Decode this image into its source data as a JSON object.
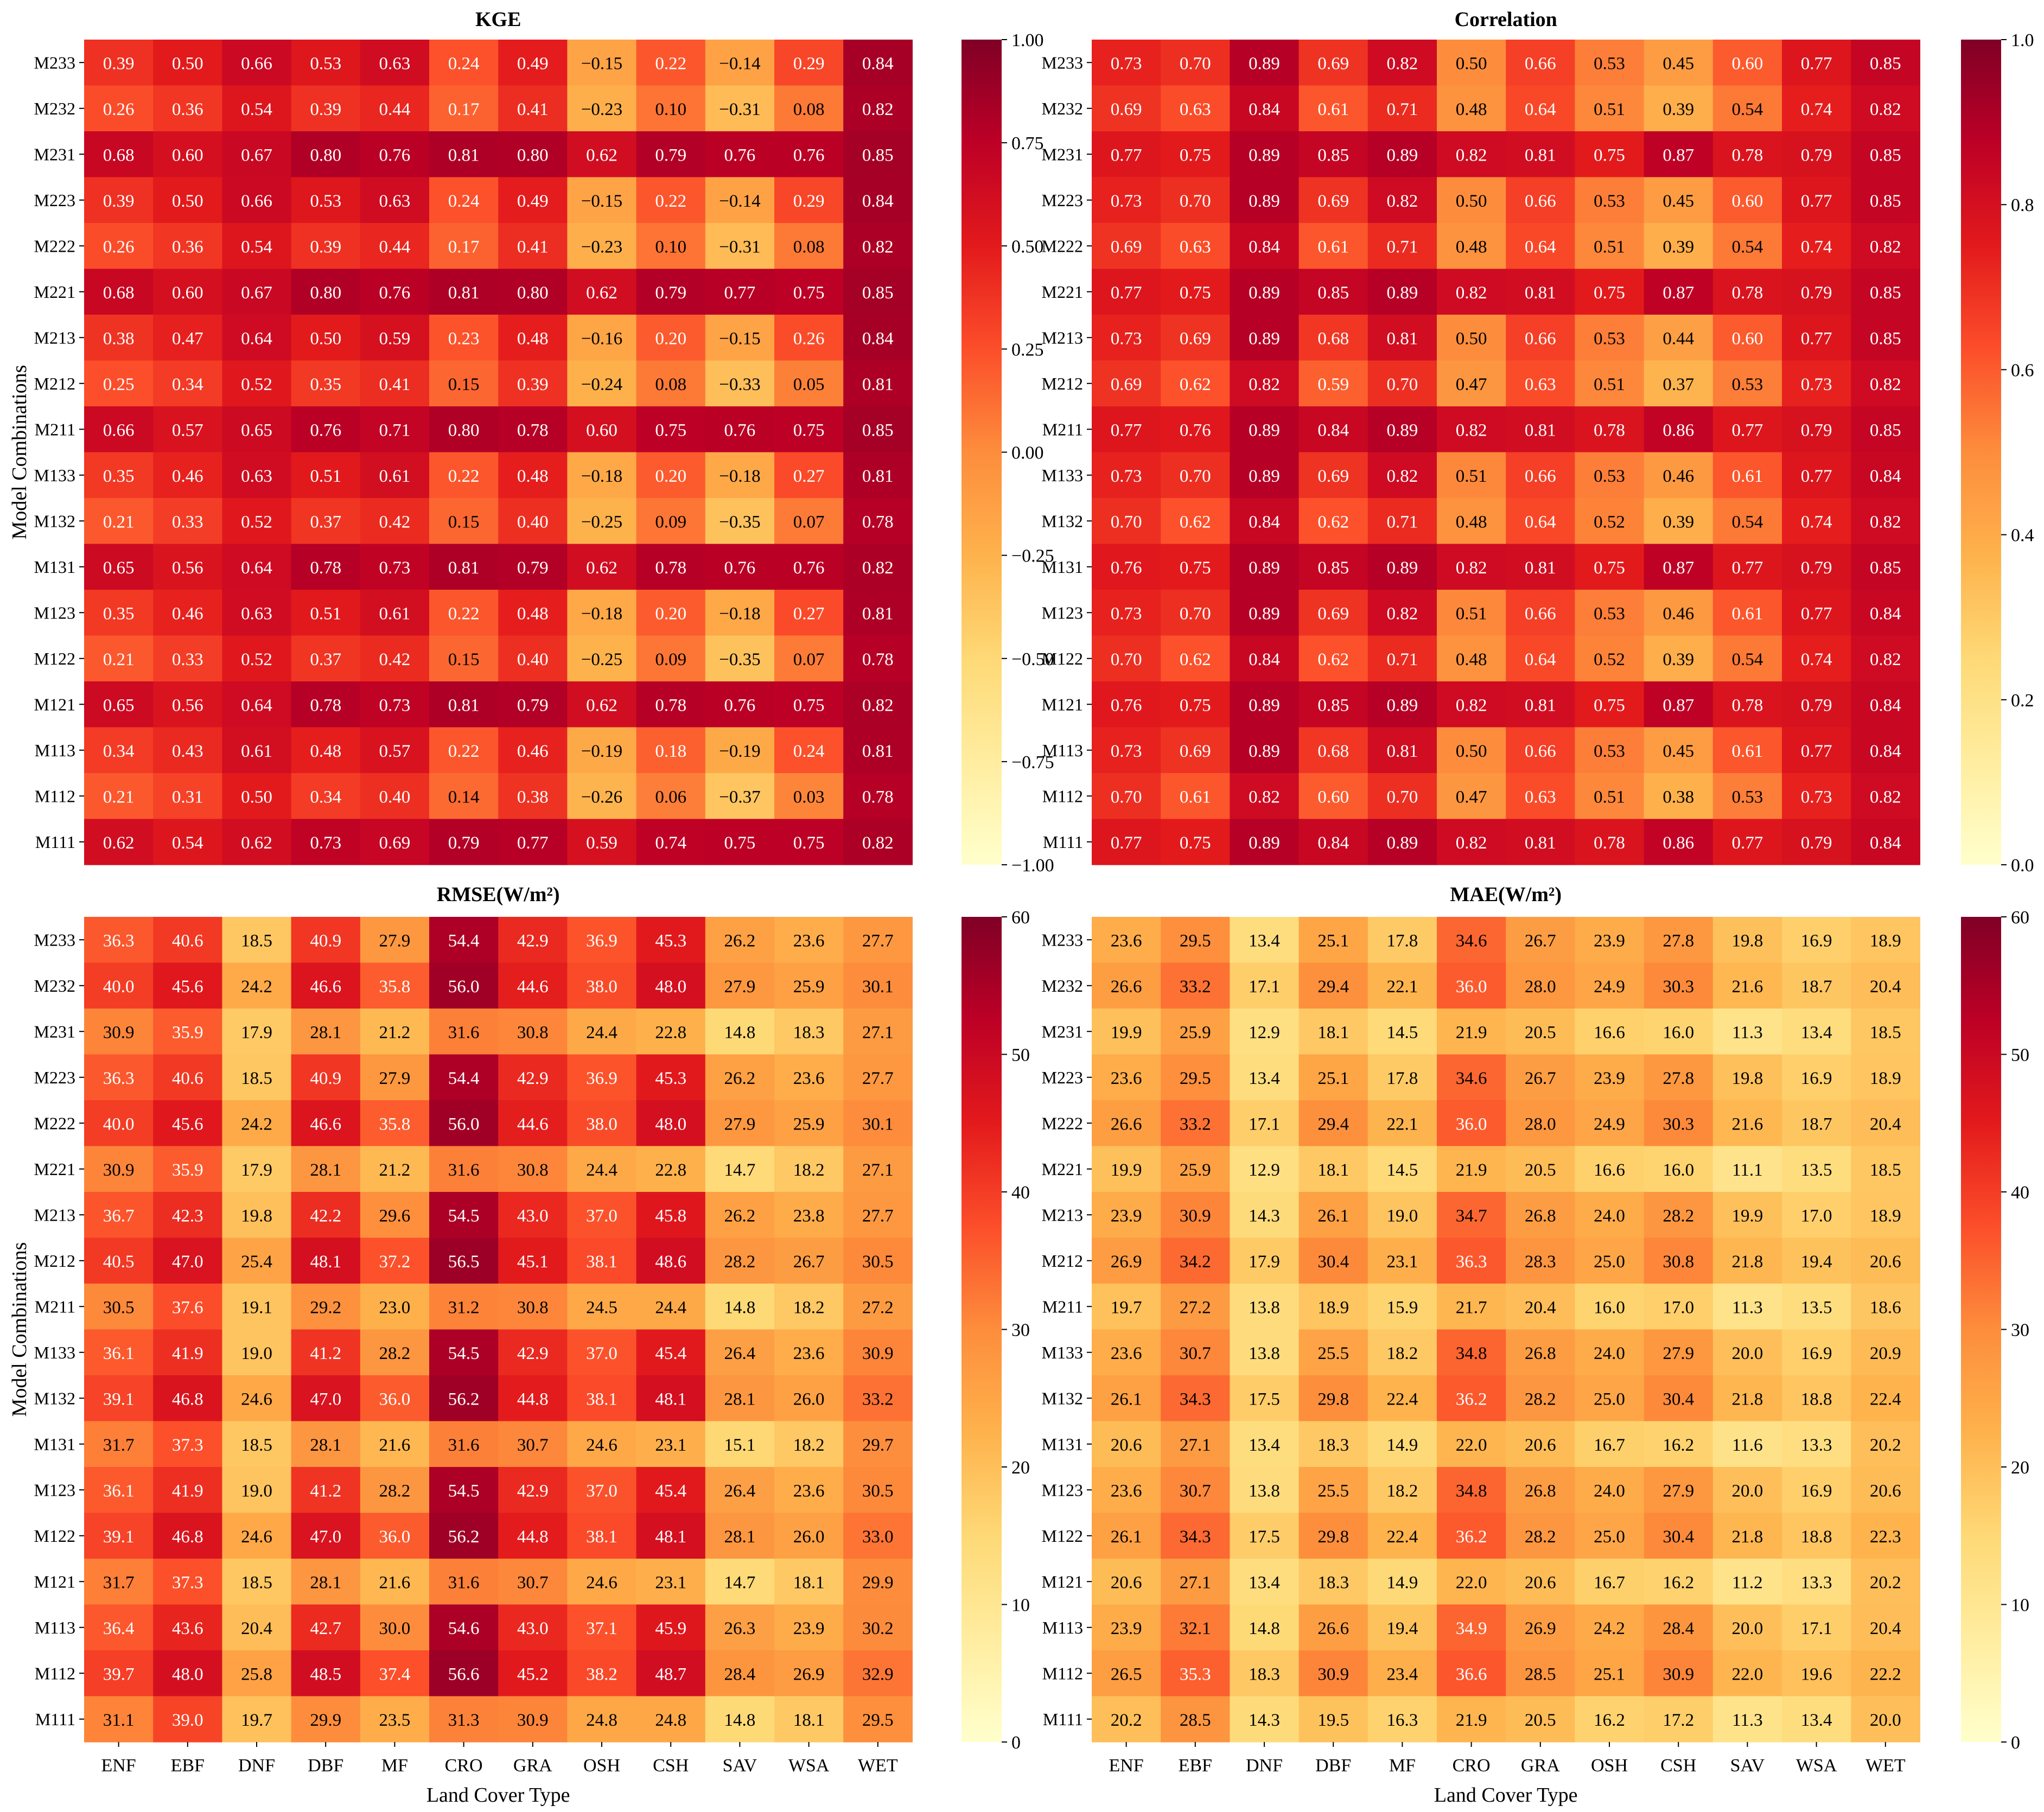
{
  "figure": {
    "xlabel": "Land Cover Type",
    "ylabel": "Model Combinations"
  },
  "colormap": {
    "name": "YlOrRd",
    "stops": [
      "#ffffcc",
      "#ffeda0",
      "#fed976",
      "#feb24c",
      "#fd8d3c",
      "#fc4e2a",
      "#e31a1c",
      "#bd0026",
      "#800026"
    ]
  },
  "chart_data": [
    {
      "type": "heatmap",
      "title": "KGE",
      "xlabel": "Land Cover Type",
      "ylabel": "Model Combinations",
      "x": [
        "ENF",
        "EBF",
        "DNF",
        "DBF",
        "MF",
        "CRO",
        "GRA",
        "OSH",
        "CSH",
        "SAV",
        "WSA",
        "WET"
      ],
      "y": [
        "M233",
        "M232",
        "M231",
        "M223",
        "M222",
        "M221",
        "M213",
        "M212",
        "M211",
        "M133",
        "M132",
        "M131",
        "M123",
        "M122",
        "M121",
        "M113",
        "M112",
        "M111"
      ],
      "values": [
        [
          0.39,
          0.5,
          0.66,
          0.53,
          0.63,
          0.24,
          0.49,
          -0.15,
          0.22,
          -0.14,
          0.29,
          0.84
        ],
        [
          0.26,
          0.36,
          0.54,
          0.39,
          0.44,
          0.17,
          0.41,
          -0.23,
          0.1,
          -0.31,
          0.08,
          0.82
        ],
        [
          0.68,
          0.6,
          0.67,
          0.8,
          0.76,
          0.81,
          0.8,
          0.62,
          0.79,
          0.76,
          0.76,
          0.85
        ],
        [
          0.39,
          0.5,
          0.66,
          0.53,
          0.63,
          0.24,
          0.49,
          -0.15,
          0.22,
          -0.14,
          0.29,
          0.84
        ],
        [
          0.26,
          0.36,
          0.54,
          0.39,
          0.44,
          0.17,
          0.41,
          -0.23,
          0.1,
          -0.31,
          0.08,
          0.82
        ],
        [
          0.68,
          0.6,
          0.67,
          0.8,
          0.76,
          0.81,
          0.8,
          0.62,
          0.79,
          0.77,
          0.75,
          0.85
        ],
        [
          0.38,
          0.47,
          0.64,
          0.5,
          0.59,
          0.23,
          0.48,
          -0.16,
          0.2,
          -0.15,
          0.26,
          0.84
        ],
        [
          0.25,
          0.34,
          0.52,
          0.35,
          0.41,
          0.15,
          0.39,
          -0.24,
          0.08,
          -0.33,
          0.05,
          0.81
        ],
        [
          0.66,
          0.57,
          0.65,
          0.76,
          0.71,
          0.8,
          0.78,
          0.6,
          0.75,
          0.76,
          0.75,
          0.85
        ],
        [
          0.35,
          0.46,
          0.63,
          0.51,
          0.61,
          0.22,
          0.48,
          -0.18,
          0.2,
          -0.18,
          0.27,
          0.81
        ],
        [
          0.21,
          0.33,
          0.52,
          0.37,
          0.42,
          0.15,
          0.4,
          -0.25,
          0.09,
          -0.35,
          0.07,
          0.78
        ],
        [
          0.65,
          0.56,
          0.64,
          0.78,
          0.73,
          0.81,
          0.79,
          0.62,
          0.78,
          0.76,
          0.76,
          0.82
        ],
        [
          0.35,
          0.46,
          0.63,
          0.51,
          0.61,
          0.22,
          0.48,
          -0.18,
          0.2,
          -0.18,
          0.27,
          0.81
        ],
        [
          0.21,
          0.33,
          0.52,
          0.37,
          0.42,
          0.15,
          0.4,
          -0.25,
          0.09,
          -0.35,
          0.07,
          0.78
        ],
        [
          0.65,
          0.56,
          0.64,
          0.78,
          0.73,
          0.81,
          0.79,
          0.62,
          0.78,
          0.76,
          0.75,
          0.82
        ],
        [
          0.34,
          0.43,
          0.61,
          0.48,
          0.57,
          0.22,
          0.46,
          -0.19,
          0.18,
          -0.19,
          0.24,
          0.81
        ],
        [
          0.21,
          0.31,
          0.5,
          0.34,
          0.4,
          0.14,
          0.38,
          -0.26,
          0.06,
          -0.37,
          0.03,
          0.78
        ],
        [
          0.62,
          0.54,
          0.62,
          0.73,
          0.69,
          0.79,
          0.77,
          0.59,
          0.74,
          0.75,
          0.75,
          0.82
        ]
      ],
      "value_format": 2,
      "vmin": -1.0,
      "vmax": 1.0,
      "colorbar_ticks": [
        -1.0,
        -0.75,
        -0.5,
        -0.25,
        0.0,
        0.25,
        0.5,
        0.75,
        1.0
      ],
      "colorbar_tick_labels": [
        "−1.00",
        "−0.75",
        "−0.50",
        "−0.25",
        "0.00",
        "0.25",
        "0.50",
        "0.75",
        "1.00"
      ]
    },
    {
      "type": "heatmap",
      "title": "Correlation",
      "xlabel": "Land Cover Type",
      "ylabel": "Model Combinations",
      "x": [
        "ENF",
        "EBF",
        "DNF",
        "DBF",
        "MF",
        "CRO",
        "GRA",
        "OSH",
        "CSH",
        "SAV",
        "WSA",
        "WET"
      ],
      "y": [
        "M233",
        "M232",
        "M231",
        "M223",
        "M222",
        "M221",
        "M213",
        "M212",
        "M211",
        "M133",
        "M132",
        "M131",
        "M123",
        "M122",
        "M121",
        "M113",
        "M112",
        "M111"
      ],
      "values": [
        [
          0.73,
          0.7,
          0.89,
          0.69,
          0.82,
          0.5,
          0.66,
          0.53,
          0.45,
          0.6,
          0.77,
          0.85
        ],
        [
          0.69,
          0.63,
          0.84,
          0.61,
          0.71,
          0.48,
          0.64,
          0.51,
          0.39,
          0.54,
          0.74,
          0.82
        ],
        [
          0.77,
          0.75,
          0.89,
          0.85,
          0.89,
          0.82,
          0.81,
          0.75,
          0.87,
          0.78,
          0.79,
          0.85
        ],
        [
          0.73,
          0.7,
          0.89,
          0.69,
          0.82,
          0.5,
          0.66,
          0.53,
          0.45,
          0.6,
          0.77,
          0.85
        ],
        [
          0.69,
          0.63,
          0.84,
          0.61,
          0.71,
          0.48,
          0.64,
          0.51,
          0.39,
          0.54,
          0.74,
          0.82
        ],
        [
          0.77,
          0.75,
          0.89,
          0.85,
          0.89,
          0.82,
          0.81,
          0.75,
          0.87,
          0.78,
          0.79,
          0.85
        ],
        [
          0.73,
          0.69,
          0.89,
          0.68,
          0.81,
          0.5,
          0.66,
          0.53,
          0.44,
          0.6,
          0.77,
          0.85
        ],
        [
          0.69,
          0.62,
          0.82,
          0.59,
          0.7,
          0.47,
          0.63,
          0.51,
          0.37,
          0.53,
          0.73,
          0.82
        ],
        [
          0.77,
          0.76,
          0.89,
          0.84,
          0.89,
          0.82,
          0.81,
          0.78,
          0.86,
          0.77,
          0.79,
          0.85
        ],
        [
          0.73,
          0.7,
          0.89,
          0.69,
          0.82,
          0.51,
          0.66,
          0.53,
          0.46,
          0.61,
          0.77,
          0.84
        ],
        [
          0.7,
          0.62,
          0.84,
          0.62,
          0.71,
          0.48,
          0.64,
          0.52,
          0.39,
          0.54,
          0.74,
          0.82
        ],
        [
          0.76,
          0.75,
          0.89,
          0.85,
          0.89,
          0.82,
          0.81,
          0.75,
          0.87,
          0.77,
          0.79,
          0.85
        ],
        [
          0.73,
          0.7,
          0.89,
          0.69,
          0.82,
          0.51,
          0.66,
          0.53,
          0.46,
          0.61,
          0.77,
          0.84
        ],
        [
          0.7,
          0.62,
          0.84,
          0.62,
          0.71,
          0.48,
          0.64,
          0.52,
          0.39,
          0.54,
          0.74,
          0.82
        ],
        [
          0.76,
          0.75,
          0.89,
          0.85,
          0.89,
          0.82,
          0.81,
          0.75,
          0.87,
          0.78,
          0.79,
          0.84
        ],
        [
          0.73,
          0.69,
          0.89,
          0.68,
          0.81,
          0.5,
          0.66,
          0.53,
          0.45,
          0.61,
          0.77,
          0.84
        ],
        [
          0.7,
          0.61,
          0.82,
          0.6,
          0.7,
          0.47,
          0.63,
          0.51,
          0.38,
          0.53,
          0.73,
          0.82
        ],
        [
          0.77,
          0.75,
          0.89,
          0.84,
          0.89,
          0.82,
          0.81,
          0.78,
          0.86,
          0.77,
          0.79,
          0.84
        ]
      ],
      "value_format": 2,
      "vmin": 0.0,
      "vmax": 1.0,
      "colorbar_ticks": [
        0.0,
        0.2,
        0.4,
        0.6,
        0.8,
        1.0
      ],
      "colorbar_tick_labels": [
        "0.0",
        "0.2",
        "0.4",
        "0.6",
        "0.8",
        "1.0"
      ]
    },
    {
      "type": "heatmap",
      "title": "RMSE(W/m²)",
      "xlabel": "Land Cover Type",
      "ylabel": "Model Combinations",
      "x": [
        "ENF",
        "EBF",
        "DNF",
        "DBF",
        "MF",
        "CRO",
        "GRA",
        "OSH",
        "CSH",
        "SAV",
        "WSA",
        "WET"
      ],
      "y": [
        "M233",
        "M232",
        "M231",
        "M223",
        "M222",
        "M221",
        "M213",
        "M212",
        "M211",
        "M133",
        "M132",
        "M131",
        "M123",
        "M122",
        "M121",
        "M113",
        "M112",
        "M111"
      ],
      "values": [
        [
          36.3,
          40.6,
          18.5,
          40.9,
          27.9,
          54.4,
          42.9,
          36.9,
          45.3,
          26.2,
          23.6,
          27.7
        ],
        [
          40.0,
          45.6,
          24.2,
          46.6,
          35.8,
          56.0,
          44.6,
          38.0,
          48.0,
          27.9,
          25.9,
          30.1
        ],
        [
          30.9,
          35.9,
          17.9,
          28.1,
          21.2,
          31.6,
          30.8,
          24.4,
          22.8,
          14.8,
          18.3,
          27.1
        ],
        [
          36.3,
          40.6,
          18.5,
          40.9,
          27.9,
          54.4,
          42.9,
          36.9,
          45.3,
          26.2,
          23.6,
          27.7
        ],
        [
          40.0,
          45.6,
          24.2,
          46.6,
          35.8,
          56.0,
          44.6,
          38.0,
          48.0,
          27.9,
          25.9,
          30.1
        ],
        [
          30.9,
          35.9,
          17.9,
          28.1,
          21.2,
          31.6,
          30.8,
          24.4,
          22.8,
          14.7,
          18.2,
          27.1
        ],
        [
          36.7,
          42.3,
          19.8,
          42.2,
          29.6,
          54.5,
          43.0,
          37.0,
          45.8,
          26.2,
          23.8,
          27.7
        ],
        [
          40.5,
          47.0,
          25.4,
          48.1,
          37.2,
          56.5,
          45.1,
          38.1,
          48.6,
          28.2,
          26.7,
          30.5
        ],
        [
          30.5,
          37.6,
          19.1,
          29.2,
          23.0,
          31.2,
          30.8,
          24.5,
          24.4,
          14.8,
          18.2,
          27.2
        ],
        [
          36.1,
          41.9,
          19.0,
          41.2,
          28.2,
          54.5,
          42.9,
          37.0,
          45.4,
          26.4,
          23.6,
          30.9
        ],
        [
          39.1,
          46.8,
          24.6,
          47.0,
          36.0,
          56.2,
          44.8,
          38.1,
          48.1,
          28.1,
          26.0,
          33.2
        ],
        [
          31.7,
          37.3,
          18.5,
          28.1,
          21.6,
          31.6,
          30.7,
          24.6,
          23.1,
          15.1,
          18.2,
          29.7
        ],
        [
          36.1,
          41.9,
          19.0,
          41.2,
          28.2,
          54.5,
          42.9,
          37.0,
          45.4,
          26.4,
          23.6,
          30.5
        ],
        [
          39.1,
          46.8,
          24.6,
          47.0,
          36.0,
          56.2,
          44.8,
          38.1,
          48.1,
          28.1,
          26.0,
          33.0
        ],
        [
          31.7,
          37.3,
          18.5,
          28.1,
          21.6,
          31.6,
          30.7,
          24.6,
          23.1,
          14.7,
          18.1,
          29.9
        ],
        [
          36.4,
          43.6,
          20.4,
          42.7,
          30.0,
          54.6,
          43.0,
          37.1,
          45.9,
          26.3,
          23.9,
          30.2
        ],
        [
          39.7,
          48.0,
          25.8,
          48.5,
          37.4,
          56.6,
          45.2,
          38.2,
          48.7,
          28.4,
          26.9,
          32.9
        ],
        [
          31.1,
          39.0,
          19.7,
          29.9,
          23.5,
          31.3,
          30.9,
          24.8,
          24.8,
          14.8,
          18.1,
          29.5
        ]
      ],
      "value_format": 1,
      "vmin": 0,
      "vmax": 60,
      "colorbar_ticks": [
        0,
        10,
        20,
        30,
        40,
        50,
        60
      ],
      "colorbar_tick_labels": [
        "0",
        "10",
        "20",
        "30",
        "40",
        "50",
        "60"
      ]
    },
    {
      "type": "heatmap",
      "title": "MAE(W/m²)",
      "xlabel": "Land Cover Type",
      "ylabel": "Model Combinations",
      "x": [
        "ENF",
        "EBF",
        "DNF",
        "DBF",
        "MF",
        "CRO",
        "GRA",
        "OSH",
        "CSH",
        "SAV",
        "WSA",
        "WET"
      ],
      "y": [
        "M233",
        "M232",
        "M231",
        "M223",
        "M222",
        "M221",
        "M213",
        "M212",
        "M211",
        "M133",
        "M132",
        "M131",
        "M123",
        "M122",
        "M121",
        "M113",
        "M112",
        "M111"
      ],
      "values": [
        [
          23.6,
          29.5,
          13.4,
          25.1,
          17.8,
          34.6,
          26.7,
          23.9,
          27.8,
          19.8,
          16.9,
          18.9
        ],
        [
          26.6,
          33.2,
          17.1,
          29.4,
          22.1,
          36.0,
          28.0,
          24.9,
          30.3,
          21.6,
          18.7,
          20.4
        ],
        [
          19.9,
          25.9,
          12.9,
          18.1,
          14.5,
          21.9,
          20.5,
          16.6,
          16.0,
          11.3,
          13.4,
          18.5
        ],
        [
          23.6,
          29.5,
          13.4,
          25.1,
          17.8,
          34.6,
          26.7,
          23.9,
          27.8,
          19.8,
          16.9,
          18.9
        ],
        [
          26.6,
          33.2,
          17.1,
          29.4,
          22.1,
          36.0,
          28.0,
          24.9,
          30.3,
          21.6,
          18.7,
          20.4
        ],
        [
          19.9,
          25.9,
          12.9,
          18.1,
          14.5,
          21.9,
          20.5,
          16.6,
          16.0,
          11.1,
          13.5,
          18.5
        ],
        [
          23.9,
          30.9,
          14.3,
          26.1,
          19.0,
          34.7,
          26.8,
          24.0,
          28.2,
          19.9,
          17.0,
          18.9
        ],
        [
          26.9,
          34.2,
          17.9,
          30.4,
          23.1,
          36.3,
          28.3,
          25.0,
          30.8,
          21.8,
          19.4,
          20.6
        ],
        [
          19.7,
          27.2,
          13.8,
          18.9,
          15.9,
          21.7,
          20.4,
          16.0,
          17.0,
          11.3,
          13.5,
          18.6
        ],
        [
          23.6,
          30.7,
          13.8,
          25.5,
          18.2,
          34.8,
          26.8,
          24.0,
          27.9,
          20.0,
          16.9,
          20.9
        ],
        [
          26.1,
          34.3,
          17.5,
          29.8,
          22.4,
          36.2,
          28.2,
          25.0,
          30.4,
          21.8,
          18.8,
          22.4
        ],
        [
          20.6,
          27.1,
          13.4,
          18.3,
          14.9,
          22.0,
          20.6,
          16.7,
          16.2,
          11.6,
          13.3,
          20.2
        ],
        [
          23.6,
          30.7,
          13.8,
          25.5,
          18.2,
          34.8,
          26.8,
          24.0,
          27.9,
          20.0,
          16.9,
          20.6
        ],
        [
          26.1,
          34.3,
          17.5,
          29.8,
          22.4,
          36.2,
          28.2,
          25.0,
          30.4,
          21.8,
          18.8,
          22.3
        ],
        [
          20.6,
          27.1,
          13.4,
          18.3,
          14.9,
          22.0,
          20.6,
          16.7,
          16.2,
          11.2,
          13.3,
          20.2
        ],
        [
          23.9,
          32.1,
          14.8,
          26.6,
          19.4,
          34.9,
          26.9,
          24.2,
          28.4,
          20.0,
          17.1,
          20.4
        ],
        [
          26.5,
          35.3,
          18.3,
          30.9,
          23.4,
          36.6,
          28.5,
          25.1,
          30.9,
          22.0,
          19.6,
          22.2
        ],
        [
          20.2,
          28.5,
          14.3,
          19.5,
          16.3,
          21.9,
          20.5,
          16.2,
          17.2,
          11.3,
          13.4,
          20.0
        ]
      ],
      "value_format": 1,
      "vmin": 0,
      "vmax": 60,
      "colorbar_ticks": [
        0,
        10,
        20,
        30,
        40,
        50,
        60
      ],
      "colorbar_tick_labels": [
        "0",
        "10",
        "20",
        "30",
        "40",
        "50",
        "60"
      ]
    }
  ]
}
